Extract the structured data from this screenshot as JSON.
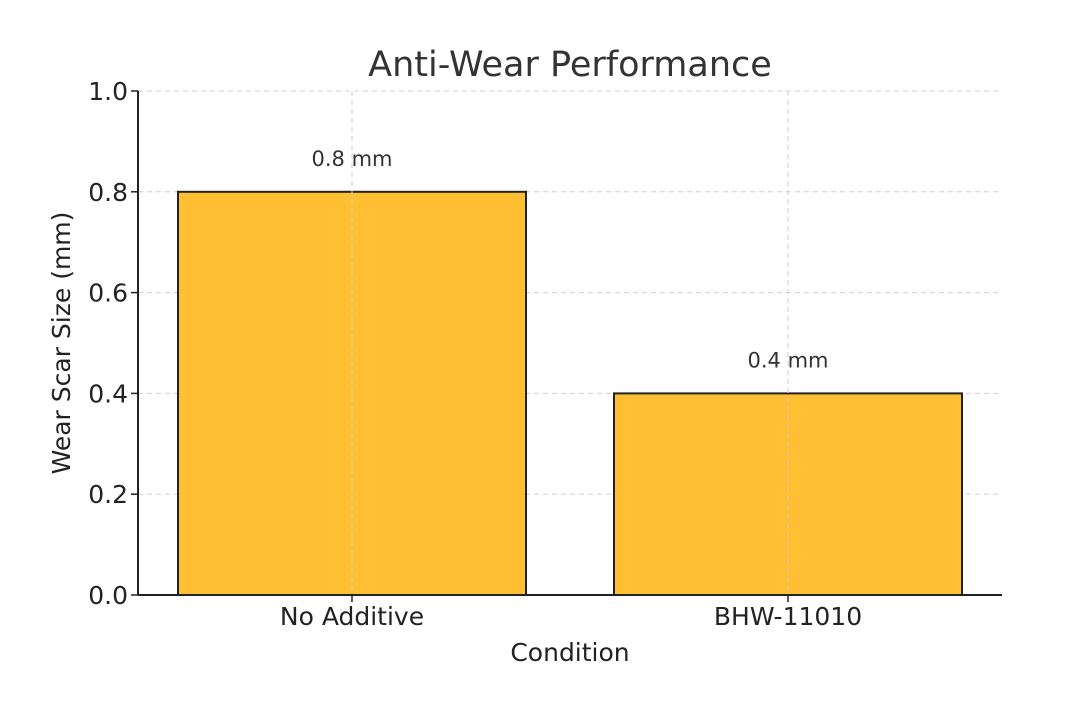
{
  "chart_data": {
    "type": "bar",
    "title": "Anti-Wear Performance",
    "xlabel": "Condition",
    "ylabel": "Wear Scar Size (mm)",
    "categories": [
      "No Additive",
      "BHW-11010"
    ],
    "values": [
      0.8,
      0.4
    ],
    "data_labels": [
      "0.8 mm",
      "0.4 mm"
    ],
    "ylim": [
      0,
      1.0
    ],
    "yticks": [
      0.0,
      0.2,
      0.4,
      0.6,
      0.8,
      1.0
    ],
    "ytick_labels": [
      "0.0",
      "0.2",
      "0.4",
      "0.6",
      "0.8",
      "1.0"
    ],
    "grid": true,
    "bar_color": "#FFBF33",
    "edge_color": "#222222"
  }
}
